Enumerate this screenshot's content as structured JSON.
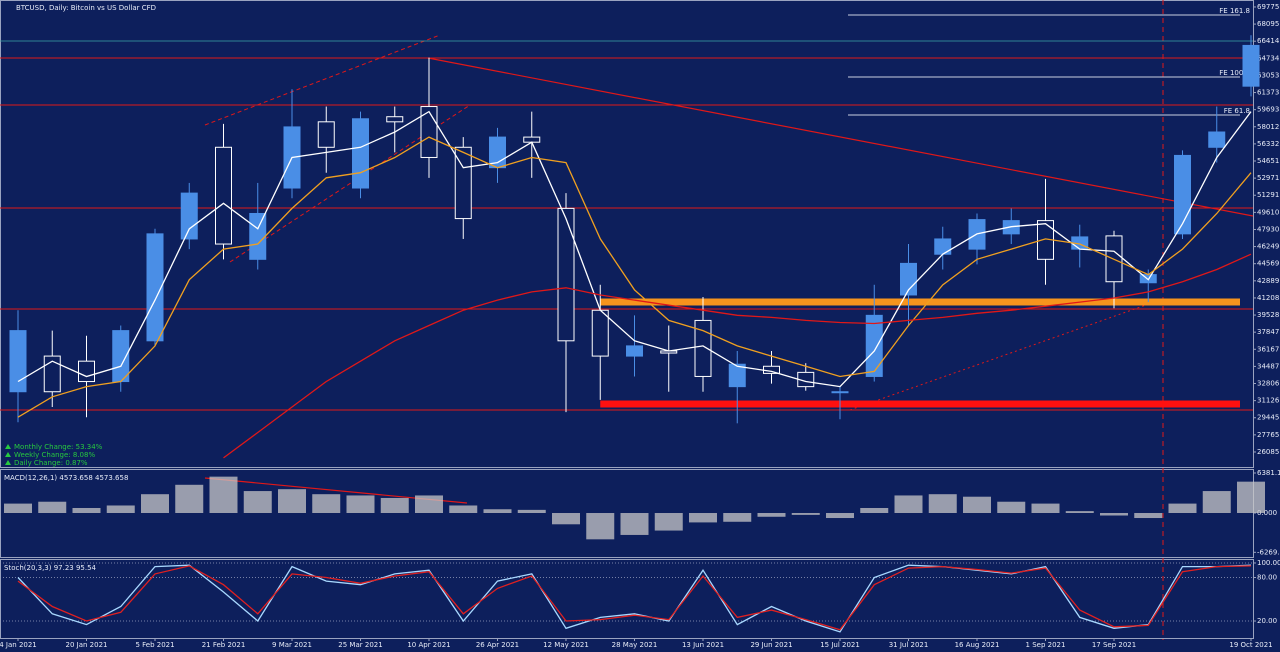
{
  "chart_data": [
    {
      "type": "candlestick",
      "title": "BTCUSD, Daily: Bitcoin vs US Dollar CFD",
      "annotations": [
        "Monthly Change: 53.34%",
        "Weekly Change: 8.08%",
        "Daily Change: 0.87%"
      ],
      "annotation_color": "#27c93f",
      "categories": [
        "4 Jan 2021",
        null,
        "20 Jan 2021",
        null,
        "5 Feb 2021",
        null,
        "21 Feb 2021",
        null,
        "9 Mar 2021",
        null,
        "25 Mar 2021",
        null,
        "10 Apr 2021",
        null,
        "26 Apr 2021",
        null,
        "12 May 2021",
        null,
        "28 May 2021",
        null,
        "13 Jun 2021",
        null,
        "29 Jun 2021",
        null,
        "15 Jul 2021",
        null,
        "31 Jul 2021",
        null,
        "16 Aug 2021",
        null,
        "1 Sep 2021",
        null,
        "17 Sep 2021",
        null,
        null,
        null,
        "19 Oct 2021"
      ],
      "open": [
        32000,
        35500,
        35000,
        33000,
        37000,
        47000,
        56000,
        45000,
        52000,
        58500,
        52000,
        59000,
        60000,
        56000,
        54000,
        57000,
        50000,
        40000,
        35500,
        36000,
        39000,
        32500,
        34500,
        33900,
        32000,
        33500,
        41500,
        45500,
        46000,
        47500,
        48800,
        46000,
        47300,
        42700,
        47500,
        56000,
        62000
      ],
      "high": [
        40000,
        38000,
        37500,
        38500,
        48000,
        52500,
        58300,
        52500,
        61700,
        60000,
        59500,
        60000,
        64800,
        57000,
        57900,
        59500,
        51500,
        42500,
        39500,
        38500,
        41300,
        36000,
        36000,
        34800,
        32500,
        42500,
        46500,
        48200,
        49500,
        50000,
        52900,
        48400,
        47800,
        44000,
        55700,
        60000,
        67000
      ],
      "low": [
        29000,
        30500,
        29500,
        32000,
        36500,
        46000,
        45000,
        44000,
        51000,
        53500,
        51000,
        55500,
        53000,
        47000,
        52500,
        53000,
        30000,
        31200,
        33500,
        32000,
        32000,
        28900,
        32800,
        32100,
        29300,
        33000,
        38500,
        44000,
        44500,
        46500,
        42500,
        44200,
        40200,
        40800,
        47000,
        54500,
        61000
      ],
      "close": [
        38000,
        32000,
        33000,
        38000,
        47500,
        51500,
        46500,
        49500,
        58000,
        56000,
        58800,
        58500,
        55000,
        49000,
        57000,
        56500,
        37000,
        35500,
        36500,
        35800,
        33500,
        34700,
        33800,
        32500,
        32000,
        39500,
        44600,
        47000,
        48900,
        48800,
        45000,
        47200,
        42800,
        43500,
        55200,
        57500,
        66000
      ],
      "up_color": "#4a8ee6",
      "down_color": "#ffffff",
      "series": [
        {
          "color": "#ffffff",
          "values": [
            33000,
            35000,
            33500,
            34500,
            41000,
            48000,
            50500,
            48000,
            55000,
            55500,
            56000,
            57500,
            59500,
            54000,
            54500,
            56500,
            49000,
            40000,
            37000,
            36000,
            36500,
            34500,
            34000,
            33000,
            32500,
            36000,
            42000,
            45500,
            47500,
            48200,
            48500,
            46000,
            45800,
            43000,
            48500,
            55000,
            59500
          ]
        },
        {
          "color": "#f0a020",
          "values": [
            29500,
            31500,
            32500,
            33000,
            36500,
            43000,
            46000,
            46500,
            50000,
            53000,
            53500,
            55000,
            57000,
            55500,
            54000,
            55000,
            54500,
            47000,
            42000,
            39000,
            38000,
            36500,
            35500,
            34500,
            33500,
            34000,
            38500,
            42500,
            45000,
            46000,
            47000,
            46500,
            45000,
            43500,
            46000,
            49500,
            53500
          ]
        },
        {
          "color": "#e01818",
          "values": [
            null,
            null,
            null,
            null,
            null,
            null,
            25500,
            28000,
            30500,
            33000,
            35000,
            37000,
            38500,
            40000,
            41000,
            41800,
            42200,
            41500,
            41000,
            40500,
            40000,
            39500,
            39300,
            39000,
            38800,
            38700,
            39000,
            39300,
            39700,
            40000,
            40400,
            40800,
            41200,
            41800,
            42800,
            44000,
            45500
          ]
        }
      ],
      "levels": [
        64765,
        60151,
        50038,
        40122,
        30205
      ],
      "level_color": "#e01818",
      "zones": [
        {
          "value": 40810,
          "color": "#f7941d"
        },
        {
          "value": 30795,
          "color": "#ff1010"
        }
      ],
      "fe_levels": [
        {
          "label": "FE 161.8",
          "value": 68987
        },
        {
          "label": "FE 100.0",
          "value": 62900
        },
        {
          "label": "FE 61.8",
          "value": 59169
        }
      ],
      "current_price": 66435,
      "ylim": [
        24610,
        70460
      ],
      "yticks": [
        69775.5,
        68095.1,
        66414.7,
        64734.3,
        63053.9,
        61373.5,
        59693.1,
        58012.7,
        56332.3,
        54651.9,
        52971.5,
        51291.1,
        49610.7,
        47930.3,
        46249.9,
        44569.5,
        42889.1,
        41208.7,
        39528.3,
        37847.9,
        36167.5,
        34487.1,
        32806.7,
        31126.3,
        29445.9,
        27765.5,
        26085.1
      ]
    },
    {
      "type": "bar",
      "title": "MACD(12,26,1) 4573.658 4573.658",
      "color": "#c8c8c8",
      "values": [
        1500,
        1800,
        800,
        1200,
        3000,
        4500,
        5800,
        3500,
        3800,
        3000,
        2800,
        2400,
        2800,
        1200,
        600,
        500,
        -1800,
        -4200,
        -3500,
        -2800,
        -1500,
        -1400,
        -600,
        -300,
        -800,
        800,
        2800,
        3000,
        2600,
        1800,
        1500,
        300,
        -400,
        -800,
        1500,
        3500,
        5000
      ],
      "ylim": [
        -7018,
        6860
      ],
      "yticks": [
        6381.18,
        {
          "value": 0,
          "label": "0.000"
        },
        -6269.3
      ]
    },
    {
      "type": "line",
      "title": "Stoch(20,3,3) 97.23 95.54",
      "grid": true,
      "series": [
        {
          "color": "#a8d8ff",
          "values": [
            80,
            30,
            15,
            40,
            95,
            97,
            60,
            20,
            95,
            75,
            70,
            85,
            90,
            20,
            75,
            85,
            10,
            25,
            30,
            20,
            90,
            15,
            40,
            20,
            5,
            80,
            97,
            95,
            90,
            85,
            95,
            25,
            10,
            15,
            95,
            95,
            97
          ]
        },
        {
          "color": "#e02020",
          "values": [
            75,
            40,
            20,
            32,
            85,
            96,
            70,
            30,
            85,
            80,
            72,
            82,
            88,
            30,
            65,
            82,
            20,
            22,
            28,
            22,
            82,
            25,
            35,
            22,
            8,
            70,
            93,
            95,
            91,
            86,
            93,
            35,
            12,
            14,
            88,
            95,
            96
          ]
        }
      ],
      "ylim": [
        -3.4,
        104.1
      ],
      "yticks": [
        {
          "value": 100,
          "label": "100.00"
        },
        {
          "value": 80,
          "label": "80.00"
        },
        {
          "value": 20,
          "label": "20.00"
        }
      ]
    }
  ]
}
